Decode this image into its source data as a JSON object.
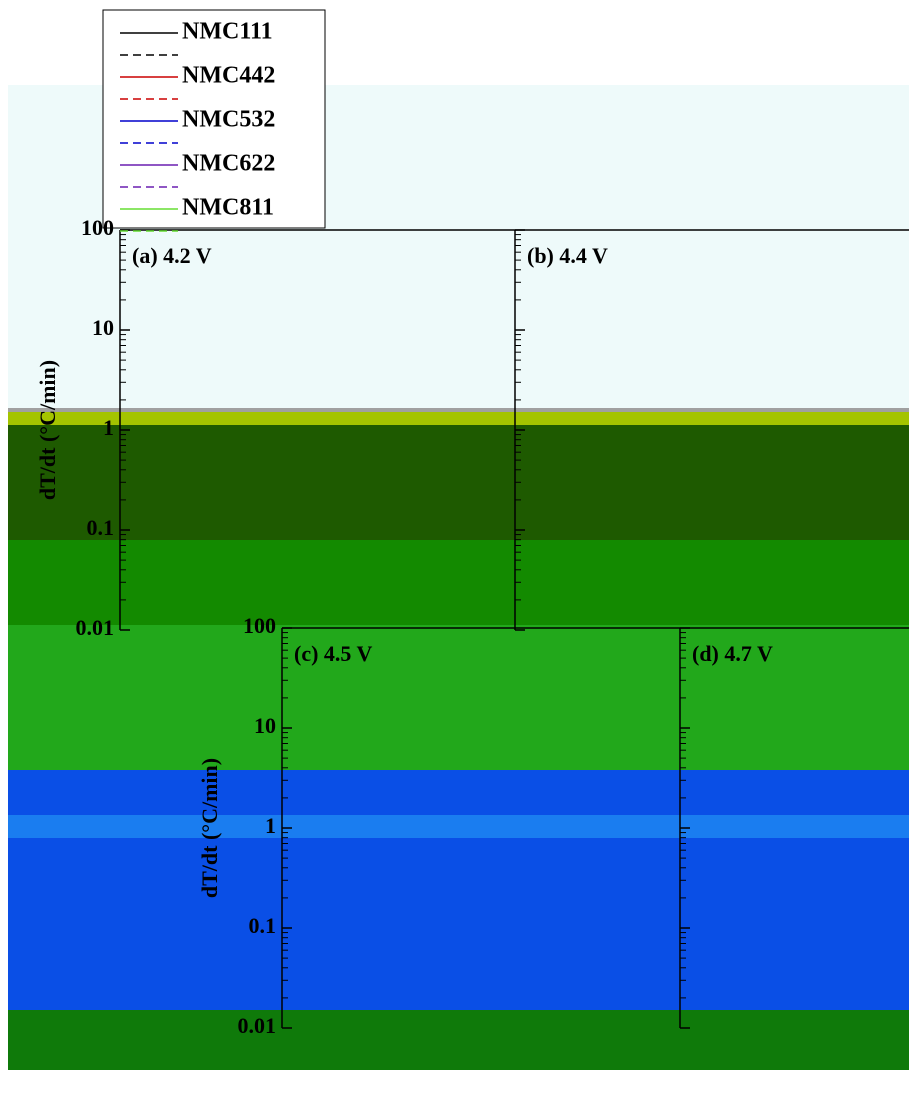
{
  "chart_data": [
    {
      "type": "line",
      "title": "(a) 4.2 V",
      "y_label": "dT/dt (°C/min)",
      "log_y": true,
      "tick_labels": true,
      "ylim": [
        0.01,
        100
      ],
      "yticks": [
        0.01,
        0.1,
        1,
        10,
        100
      ],
      "series": [
        {
          "name": "NMC111",
          "color": "#000000"
        },
        {
          "name": "NMC442",
          "color": "#cc0000"
        },
        {
          "name": "NMC532",
          "color": "#0000cc"
        },
        {
          "name": "NMC622",
          "color": "#6a1fb0"
        },
        {
          "name": "NMC811",
          "color": "#66dd33"
        }
      ]
    },
    {
      "type": "line",
      "title": "(b) 4.4 V",
      "log_y": true,
      "tick_labels": false,
      "ylim": [
        0.01,
        100
      ],
      "yticks": [
        0.01,
        0.1,
        1,
        10,
        100
      ]
    },
    {
      "type": "line",
      "title": "(c) 4.5 V",
      "y_label": "dT/dt (°C/min)",
      "log_y": true,
      "tick_labels": true,
      "ylim": [
        0.01,
        100
      ],
      "yticks": [
        0.01,
        0.1,
        1,
        10,
        100
      ]
    },
    {
      "type": "line",
      "title": "(d) 4.7 V",
      "log_y": true,
      "tick_labels": false,
      "ylim": [
        0.01,
        100
      ],
      "yticks": [
        0.01,
        0.1,
        1,
        10,
        100
      ]
    }
  ]
}
